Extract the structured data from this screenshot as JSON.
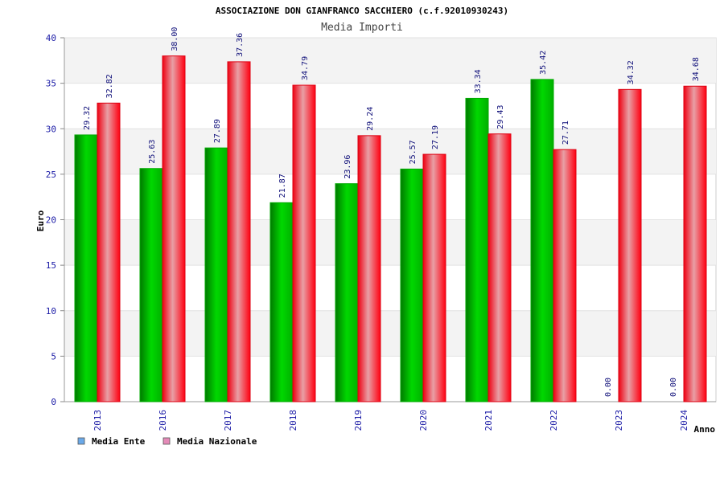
{
  "chart_data": {
    "type": "bar",
    "title": "ASSOCIAZIONE DON GIANFRANCO SACCHIERO (c.f.92010930243)",
    "subtitle": "Media Importi",
    "xlabel": "Anno",
    "ylabel": "Euro",
    "ylim": [
      0,
      40
    ],
    "yticks": [
      0,
      5,
      10,
      15,
      20,
      25,
      30,
      35,
      40
    ],
    "grid": true,
    "legend_position": "bottom-left",
    "categories": [
      "2013",
      "2016",
      "2017",
      "2018",
      "2019",
      "2020",
      "2021",
      "2022",
      "2023",
      "2024"
    ],
    "series": [
      {
        "name": "Media Ente",
        "color": "#00bb00",
        "legend_color": "#6aa9e9",
        "values": [
          29.32,
          25.63,
          27.89,
          21.87,
          23.96,
          25.57,
          33.34,
          35.42,
          0.0,
          0.0
        ],
        "labels": [
          "29.32",
          "25.63",
          "27.89",
          "21.87",
          "23.96",
          "25.57",
          "33.34",
          "35.42",
          "0.00",
          "0.00"
        ]
      },
      {
        "name": "Media Nazionale",
        "color": "#ee1122",
        "legend_color": "#e58ab8",
        "values": [
          32.82,
          38.0,
          37.36,
          34.79,
          29.24,
          27.19,
          29.43,
          27.71,
          34.32,
          34.68
        ],
        "labels": [
          "32.82",
          "38.00",
          "37.36",
          "34.79",
          "29.24",
          "27.19",
          "29.43",
          "27.71",
          "34.32",
          "34.68"
        ]
      }
    ]
  }
}
